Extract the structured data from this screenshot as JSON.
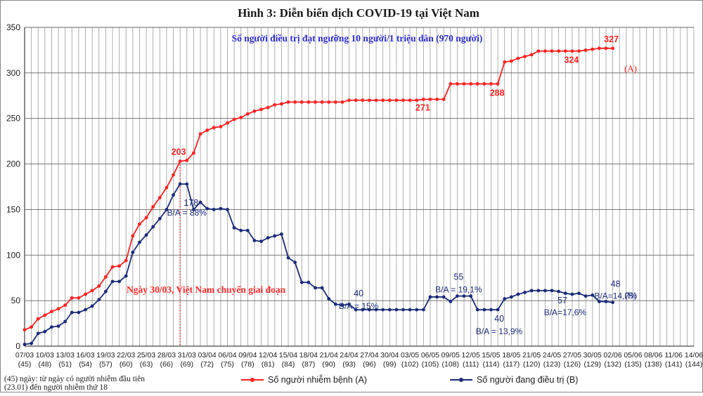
{
  "chart_data": {
    "type": "line",
    "title": "Hình 3: Diễn biến dịch COVID-19 tại Việt Nam",
    "subtitle": "Số người điều trị đạt ngưỡng 10 người/1 triệu dân (970 người)",
    "ylim": [
      0,
      350
    ],
    "yticks": [
      0,
      50,
      100,
      150,
      200,
      250,
      300,
      350
    ],
    "grid": true,
    "legend_position": "bottom",
    "x_tick_labels": [
      {
        "date": "07/03",
        "day": "(45)"
      },
      {
        "date": "10/03",
        "day": "(48)"
      },
      {
        "date": "13/03",
        "day": "(51)"
      },
      {
        "date": "16/03",
        "day": "(54)"
      },
      {
        "date": "19/03",
        "day": "(57)"
      },
      {
        "date": "22/03",
        "day": "(60)"
      },
      {
        "date": "25/03",
        "day": "(63)"
      },
      {
        "date": "28/03",
        "day": "(66)"
      },
      {
        "date": "31/03",
        "day": "(69)"
      },
      {
        "date": "03/04",
        "day": "(72)"
      },
      {
        "date": "06/04",
        "day": "(75)"
      },
      {
        "date": "09/04",
        "day": "(78)"
      },
      {
        "date": "12/04",
        "day": "(81)"
      },
      {
        "date": "15/04",
        "day": "(84)"
      },
      {
        "date": "18/04",
        "day": "(87)"
      },
      {
        "date": "21/04",
        "day": "(90)"
      },
      {
        "date": "24/04",
        "day": "(93)"
      },
      {
        "date": "27/04",
        "day": "(96)"
      },
      {
        "date": "30/04",
        "day": "(99)"
      },
      {
        "date": "03/05",
        "day": "(102)"
      },
      {
        "date": "06/05",
        "day": "(105)"
      },
      {
        "date": "09/05",
        "day": "(108)"
      },
      {
        "date": "12/05",
        "day": "(111)"
      },
      {
        "date": "15/05",
        "day": "(114)"
      },
      {
        "date": "18/05",
        "day": "(117)"
      },
      {
        "date": "21/05",
        "day": "(120)"
      },
      {
        "date": "24/05",
        "day": "(123)"
      },
      {
        "date": "27/05",
        "day": "(126)"
      },
      {
        "date": "30/05",
        "day": "(129)"
      },
      {
        "date": "02/06",
        "day": "(132)"
      },
      {
        "date": "05/06",
        "day": "(135)"
      },
      {
        "date": "08/06",
        "day": "(138)"
      },
      {
        "date": "11/06",
        "day": "(141)"
      },
      {
        "date": "14/06",
        "day": "(144)"
      }
    ],
    "series": [
      {
        "name": "Số người nhiễm bệnh (A)",
        "tag": "(A)",
        "color": "#ff2020",
        "values": [
          18,
          21,
          30,
          34,
          38,
          41,
          45,
          53,
          53,
          57,
          61,
          66,
          76,
          87,
          88,
          94,
          121,
          134,
          141,
          153,
          163,
          174,
          188,
          203,
          204,
          212,
          233,
          237,
          240,
          241,
          245,
          249,
          251,
          255,
          258,
          260,
          262,
          265,
          266,
          268,
          268,
          268,
          268,
          268,
          268,
          268,
          268,
          268,
          270,
          270,
          270,
          270,
          270,
          270,
          270,
          270,
          270,
          270,
          270,
          271,
          271,
          271,
          271,
          288,
          288,
          288,
          288,
          288,
          288,
          288,
          288,
          312,
          313,
          316,
          318,
          320,
          324,
          324,
          324,
          324,
          324,
          324,
          324,
          325,
          326,
          327,
          327,
          327
        ]
      },
      {
        "name": "Số người đang điều trị (B)",
        "tag": "(B)",
        "color": "#1a2a7a",
        "values": [
          2,
          3,
          14,
          16,
          21,
          22,
          27,
          37,
          37,
          40,
          44,
          51,
          60,
          71,
          71,
          77,
          103,
          114,
          122,
          131,
          140,
          150,
          166,
          178,
          178,
          150,
          158,
          151,
          150,
          151,
          150,
          130,
          127,
          127,
          116,
          115,
          119,
          121,
          123,
          97,
          92,
          70,
          70,
          64,
          64,
          52,
          46,
          45,
          46,
          40,
          40,
          40,
          40,
          40,
          40,
          40,
          40,
          40,
          40,
          40,
          54,
          54,
          54,
          49,
          55,
          55,
          55,
          40,
          40,
          40,
          40,
          52,
          54,
          57,
          59,
          61,
          61,
          61,
          61,
          60,
          58,
          57,
          58,
          55,
          56,
          49,
          49,
          48
        ]
      }
    ],
    "annotations": [
      {
        "text": "203",
        "series": 0,
        "index": 23
      },
      {
        "text": "271",
        "series": 0,
        "index": 59
      },
      {
        "text": "288",
        "series": 0,
        "index": 70
      },
      {
        "text": "324",
        "series": 0,
        "index": 81
      },
      {
        "text": "327",
        "series": 0,
        "index": 87
      },
      {
        "text": "178",
        "series": 1,
        "index": 24
      },
      {
        "text": "B/A = 88%",
        "series": 1,
        "index": 24
      },
      {
        "text": "40",
        "series": 1,
        "index": 49
      },
      {
        "text": "B/A = 15%",
        "series": 1,
        "index": 49
      },
      {
        "text": "55",
        "series": 1,
        "index": 64
      },
      {
        "text": "B/A = 19,1%",
        "series": 1,
        "index": 64
      },
      {
        "text": "40",
        "series": 1,
        "index": 70
      },
      {
        "text": "B/A = 13,9%",
        "series": 1,
        "index": 70
      },
      {
        "text": "57",
        "series": 1,
        "index": 81
      },
      {
        "text": "B/A=17,6%",
        "series": 1,
        "index": 81
      },
      {
        "text": "48",
        "series": 1,
        "index": 87
      },
      {
        "text": "B/A=14,7%",
        "series": 1,
        "index": 87
      }
    ],
    "event_label": "Ngày 30/03, Việt Nam chuyển giai đoạn",
    "footnote": [
      "(45) ngày: từ ngày có người nhiễm đầu tiên",
      "(23.01) đến người nhiễm thứ 18"
    ]
  }
}
